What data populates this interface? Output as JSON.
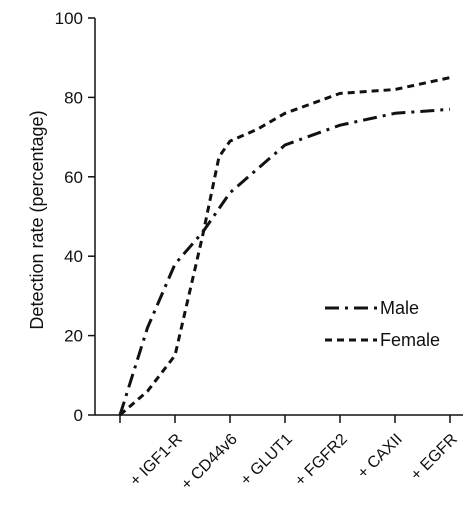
{
  "chart_data": {
    "type": "line",
    "categories": [
      "",
      "+ IGF1-R",
      "+ CD44v6",
      "+ GLUT1",
      "+ FGFR2",
      "+ CAXII",
      "+ EGFR"
    ],
    "x": [
      0,
      1,
      2,
      3,
      4,
      5,
      6
    ],
    "series": [
      {
        "name": "Male",
        "style": "dash-dot",
        "x": [
          0,
          0.5,
          1,
          1.5,
          2,
          2.5,
          3,
          4,
          5,
          6
        ],
        "values": [
          0,
          22,
          38,
          46,
          56,
          62,
          68,
          73,
          76,
          77
        ]
      },
      {
        "name": "Female",
        "style": "dashed",
        "x": [
          0,
          0.5,
          1,
          1.5,
          1.8,
          2,
          2.5,
          3,
          4,
          5,
          6
        ],
        "values": [
          0,
          6,
          15,
          45,
          65,
          69,
          72,
          76,
          81,
          82,
          85
        ]
      }
    ],
    "ylabel": "Detection rate (percentage)",
    "xlabel": "",
    "title": "",
    "ylim": [
      0,
      100
    ],
    "yticks": [
      0,
      20,
      40,
      60,
      80,
      100
    ],
    "grid": false,
    "legend_position": "right"
  }
}
